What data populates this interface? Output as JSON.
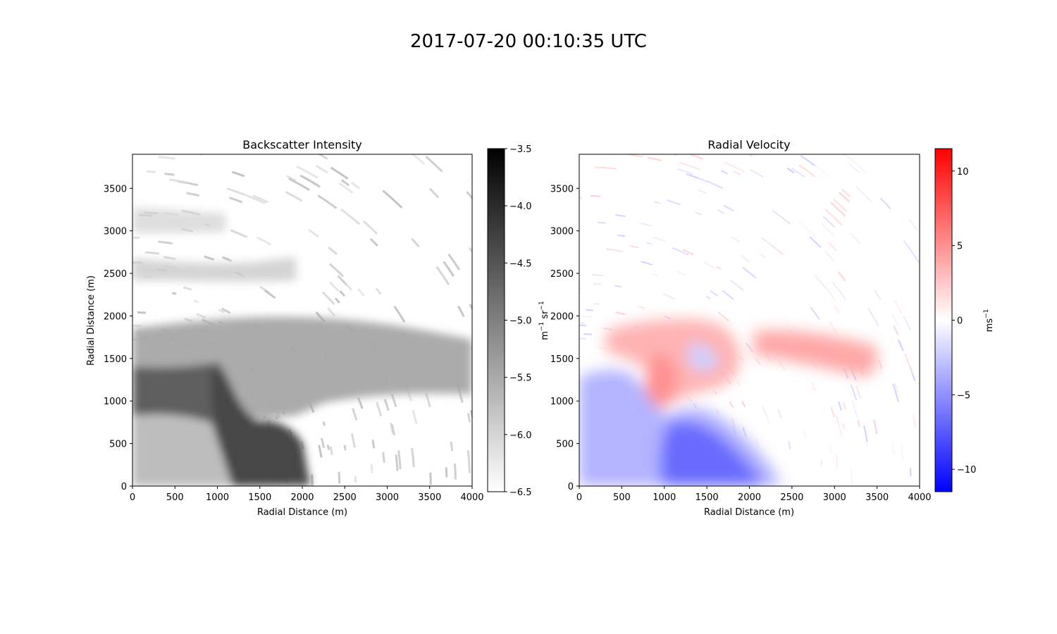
{
  "figure_title": "2017-07-20 00:10:35 UTC",
  "chart_data": [
    {
      "type": "heatmap",
      "title": "Backscatter Intensity",
      "xlabel": "Radial Distance (m)",
      "ylabel": "Radial Distance (m)",
      "xlim": [
        0,
        4000
      ],
      "ylim": [
        0,
        3900
      ],
      "x_ticks": [
        "0",
        "500",
        "1000",
        "1500",
        "2000",
        "2500",
        "3000",
        "3500",
        "4000"
      ],
      "y_ticks": [
        "0",
        "500",
        "1000",
        "1500",
        "2000",
        "2500",
        "3000",
        "3500"
      ],
      "colormap": "greys",
      "colorbar": {
        "range": [
          -6.5,
          -3.5
        ],
        "ticks": [
          "−3.5",
          "−4.0",
          "−4.5",
          "−5.0",
          "−5.5",
          "−6.0",
          "−6.5"
        ],
        "label": "m⁻¹ sr⁻¹",
        "label_html": [
          "m",
          "−1",
          " sr",
          "−1"
        ]
      },
      "features": [
        {
          "name": "surface-layer",
          "x": [
            0,
            2200
          ],
          "y": [
            0,
            1300
          ],
          "value": -4.3
        },
        {
          "name": "dense-plume",
          "x": [
            800,
            2000
          ],
          "y": [
            0,
            1100
          ],
          "value": -3.9
        },
        {
          "name": "mixed-layer",
          "x": [
            0,
            4000
          ],
          "y": [
            1000,
            2000
          ],
          "value": -5.0
        },
        {
          "name": "upper-layer-1",
          "x": [
            0,
            1500
          ],
          "y": [
            2450,
            2700
          ],
          "value": -5.6
        },
        {
          "name": "upper-layer-2",
          "x": [
            0,
            1000
          ],
          "y": [
            3050,
            3300
          ],
          "value": -5.8
        }
      ]
    },
    {
      "type": "heatmap",
      "title": "Radial Velocity",
      "xlabel": "Radial Distance (m)",
      "ylabel": "",
      "xlim": [
        0,
        4000
      ],
      "ylim": [
        0,
        3900
      ],
      "x_ticks": [
        "0",
        "500",
        "1000",
        "1500",
        "2000",
        "2500",
        "3000",
        "3500",
        "4000"
      ],
      "y_ticks": [
        "0",
        "500",
        "1000",
        "1500",
        "2000",
        "2500",
        "3000",
        "3500"
      ],
      "colormap": "bwr",
      "colorbar": {
        "range": [
          -11.5,
          11.5
        ],
        "ticks": [
          "10",
          "5",
          "0",
          "−5",
          "−10"
        ],
        "label": "ms⁻¹",
        "label_html": [
          "ms",
          "−1"
        ]
      },
      "features": [
        {
          "name": "negative-velocity-region",
          "x": [
            0,
            2350
          ],
          "y": [
            0,
            1250
          ],
          "value": -6
        },
        {
          "name": "positive-arc",
          "x": [
            200,
            2000
          ],
          "y": [
            1200,
            2000
          ],
          "value": 3
        },
        {
          "name": "positive-band",
          "x": [
            2200,
            3500
          ],
          "y": [
            1300,
            1900
          ],
          "value": 4
        }
      ]
    }
  ],
  "colors": {
    "axes": "#000000",
    "background": "#ffffff",
    "positive": "#ff0000",
    "negative": "#0000ff"
  }
}
